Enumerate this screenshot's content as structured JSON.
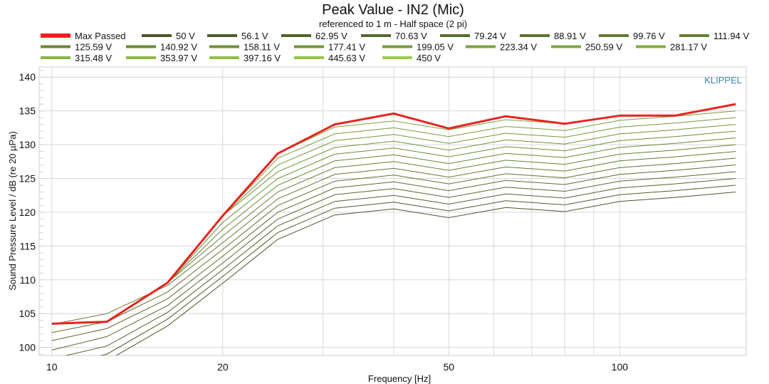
{
  "chart_data": {
    "type": "line",
    "title": "Peak Value - IN2 (Mic)",
    "subtitle": "referenced to 1 m - Half space (2 pi)",
    "xlabel": "Frequency [Hz]",
    "ylabel": "Sound Pressure Level / dB (re 20 µPa)",
    "watermark": "KLIPPEL",
    "x_scale": "log",
    "xlim": [
      9.5,
      167
    ],
    "ylim": [
      98.8,
      141.5
    ],
    "x_ticks": [
      10,
      20,
      50,
      100
    ],
    "y_ticks": [
      100,
      105,
      110,
      115,
      120,
      125,
      130,
      135,
      140
    ],
    "grid": true,
    "legend_position": "top",
    "x": [
      10,
      12.5,
      16,
      20,
      25,
      31.5,
      40,
      50,
      63,
      80,
      100,
      125,
      160
    ],
    "max_passed": {
      "name": "Max Passed",
      "color": "#e8231f",
      "values": [
        103.5,
        103.8,
        109.6,
        119.5,
        128.7,
        133,
        134.6,
        132.4,
        134.2,
        133.1,
        134.3,
        134.3,
        136
      ]
    },
    "line_color_first": "#4a5628",
    "line_color_last": "#9acb48",
    "series": [
      {
        "name": "50 V",
        "values": [
          96,
          98,
          103.2,
          109.5,
          116,
          119.6,
          120.5,
          119.2,
          120.7,
          120.1,
          121.6,
          122.2,
          123
        ]
      },
      {
        "name": "56.1 V",
        "values": [
          97,
          99,
          104.2,
          110.5,
          117,
          120.6,
          121.5,
          120.2,
          121.7,
          121.1,
          122.6,
          123.2,
          124
        ]
      },
      {
        "name": "62.95 V",
        "values": [
          98.3,
          100.2,
          105.2,
          111.5,
          118,
          121.6,
          122.5,
          121.2,
          122.7,
          122.1,
          123.6,
          124.2,
          125
        ]
      },
      {
        "name": "70.63 V",
        "values": [
          99.6,
          101.6,
          106.2,
          112.5,
          119,
          122.6,
          123.5,
          122.2,
          123.7,
          123.1,
          124.6,
          125.2,
          126
        ]
      },
      {
        "name": "79.24 V",
        "values": [
          101,
          102.8,
          107.2,
          113.5,
          120,
          123.6,
          124.5,
          123.2,
          124.7,
          124.1,
          125.6,
          126.2,
          127
        ]
      },
      {
        "name": "88.91 V",
        "values": [
          102.2,
          103.8,
          108.2,
          114.5,
          121,
          124.6,
          125.5,
          124.2,
          125.7,
          125.1,
          126.6,
          127.2,
          128
        ]
      },
      {
        "name": "99.76 V",
        "values": [
          103.4,
          105,
          109.2,
          115.5,
          122,
          125.6,
          126.5,
          125.2,
          126.7,
          126.1,
          127.6,
          128.2,
          129
        ]
      },
      {
        "name": "111.94 V",
        "values": [
          103.5,
          103.8,
          109.6,
          116.5,
          123,
          126.6,
          127.5,
          126.2,
          127.7,
          127.1,
          128.6,
          129.2,
          130
        ]
      },
      {
        "name": "125.59 V",
        "values": [
          103.5,
          103.8,
          109.6,
          117.5,
          124,
          127.6,
          128.5,
          127.2,
          128.7,
          128.1,
          129.6,
          130.2,
          131
        ]
      },
      {
        "name": "140.92 V",
        "values": [
          103.5,
          103.8,
          109.6,
          118.5,
          125,
          128.6,
          129.5,
          128.2,
          129.7,
          129.1,
          130.6,
          131.2,
          132
        ]
      },
      {
        "name": "158.11 V",
        "values": [
          103.5,
          103.8,
          109.6,
          119.5,
          126,
          129.6,
          130.5,
          129.2,
          130.7,
          130.1,
          131.6,
          132.2,
          133
        ]
      },
      {
        "name": "177.41 V",
        "values": [
          103.5,
          103.8,
          109.6,
          119.5,
          127,
          130.6,
          131.5,
          130.2,
          131.7,
          131.1,
          132.6,
          133.2,
          134
        ]
      },
      {
        "name": "199.05 V",
        "values": [
          103.5,
          103.8,
          109.6,
          119.5,
          128,
          131.6,
          132.5,
          131.2,
          132.7,
          132.1,
          133.6,
          134.2,
          135
        ]
      },
      {
        "name": "223.34 V",
        "values": [
          103.5,
          103.8,
          109.6,
          119.5,
          128.7,
          132.6,
          133.5,
          132.2,
          133.7,
          133.1,
          134.3,
          134.3,
          136
        ]
      },
      {
        "name": "250.59 V",
        "values": [
          103.5,
          103.8,
          109.6,
          119.5,
          128.7,
          133,
          134.5,
          132.4,
          134.2,
          133.1,
          134.3,
          134.3,
          136
        ]
      },
      {
        "name": "281.17 V",
        "values": [
          103.5,
          103.8,
          109.6,
          119.5,
          128.7,
          133,
          134.6,
          132.4,
          134.2,
          133.1,
          134.3,
          134.3,
          136
        ]
      },
      {
        "name": "315.48 V",
        "values": [
          103.5,
          103.8,
          109.6,
          119.5,
          128.7,
          133,
          134.6,
          132.4,
          134.2,
          133.1,
          134.3,
          134.3,
          136
        ]
      },
      {
        "name": "353.97 V",
        "values": [
          103.5,
          103.8,
          109.6,
          119.5,
          128.7,
          133,
          134.6,
          132.4,
          134.2,
          133.1,
          134.3,
          134.3,
          136
        ]
      },
      {
        "name": "397.16 V",
        "values": [
          103.5,
          103.8,
          109.6,
          119.5,
          128.7,
          133,
          134.6,
          132.4,
          134.2,
          133.1,
          134.3,
          134.3,
          136
        ]
      },
      {
        "name": "445.63 V",
        "values": [
          103.5,
          103.8,
          109.6,
          119.5,
          128.7,
          133,
          134.6,
          132.4,
          134.2,
          133.1,
          134.3,
          134.3,
          136
        ]
      },
      {
        "name": "450 V",
        "values": [
          103.5,
          103.8,
          109.6,
          119.5,
          128.7,
          133,
          134.6,
          132.4,
          134.2,
          133.1,
          134.3,
          134.3,
          136
        ]
      }
    ]
  }
}
